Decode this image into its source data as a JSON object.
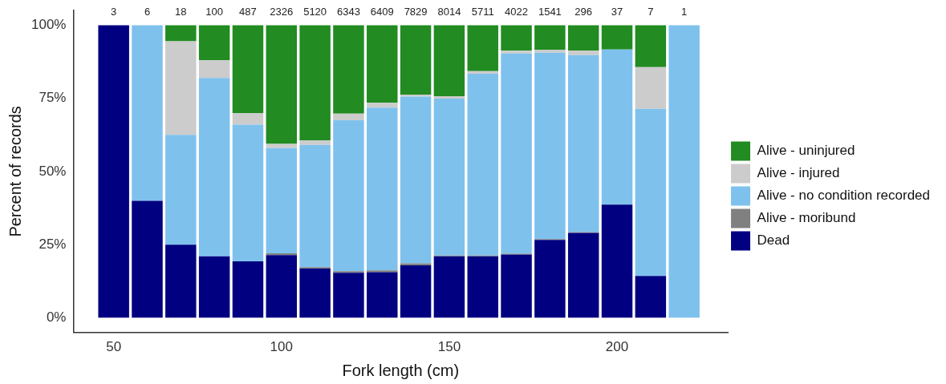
{
  "chart_data": {
    "type": "bar",
    "stacked": true,
    "xlabel": "Fork length (cm)",
    "ylabel": "Percent of records",
    "x": [
      50,
      60,
      70,
      80,
      90,
      100,
      110,
      120,
      130,
      140,
      150,
      160,
      170,
      180,
      190,
      200,
      210,
      220
    ],
    "xlim": [
      38,
      233
    ],
    "xticks": [
      50,
      100,
      150,
      200
    ],
    "ylim": [
      -5,
      105
    ],
    "yticks": [
      {
        "value": 0,
        "label": "0%"
      },
      {
        "value": 25,
        "label": "25%"
      },
      {
        "value": 50,
        "label": "50%"
      },
      {
        "value": 75,
        "label": "75%"
      },
      {
        "value": 100,
        "label": "100%"
      }
    ],
    "grid": false,
    "legend": "right",
    "annotations": [
      "3",
      "6",
      "18",
      "100",
      "487",
      "2326",
      "5120",
      "6343",
      "6409",
      "7829",
      "8014",
      "5711",
      "4022",
      "1541",
      "296",
      "37",
      "7",
      "1"
    ],
    "series": [
      {
        "name": "Dead",
        "color": "#000080",
        "values": [
          100,
          40,
          25,
          21,
          19.3,
          21.4,
          16.8,
          15.4,
          15.6,
          17.9,
          21.0,
          21.0,
          21.6,
          26.6,
          29.0,
          38.7,
          14.3,
          null
        ]
      },
      {
        "name": "Alive - moribund",
        "color": "#808080",
        "values": [
          null,
          null,
          null,
          null,
          null,
          0.6,
          0.5,
          0.5,
          0.6,
          0.7,
          0.3,
          0.3,
          0.3,
          0.3,
          0.3,
          null,
          null,
          null
        ]
      },
      {
        "name": "Alive - no condition recorded",
        "color": "#7fc1ed",
        "values": [
          null,
          60,
          37.5,
          61,
          46.7,
          36,
          41.8,
          51.6,
          55.6,
          57,
          53.6,
          62.1,
          68.4,
          63.7,
          60.5,
          53,
          57.1,
          100
        ]
      },
      {
        "name": "Alive - injured",
        "color": "#cccccc",
        "values": [
          null,
          null,
          32,
          6,
          4,
          1.4,
          1.5,
          2.3,
          1.7,
          0.7,
          0.8,
          0.9,
          1.0,
          1.0,
          1.5,
          null,
          14.3,
          null
        ]
      },
      {
        "name": "Alive - uninjured",
        "color": "#228b22",
        "values": [
          null,
          null,
          5.5,
          12,
          30,
          40.6,
          39.4,
          30.2,
          26.5,
          23.7,
          24.3,
          15.7,
          8.7,
          8.4,
          8.7,
          8.3,
          14.3,
          null
        ]
      }
    ]
  }
}
